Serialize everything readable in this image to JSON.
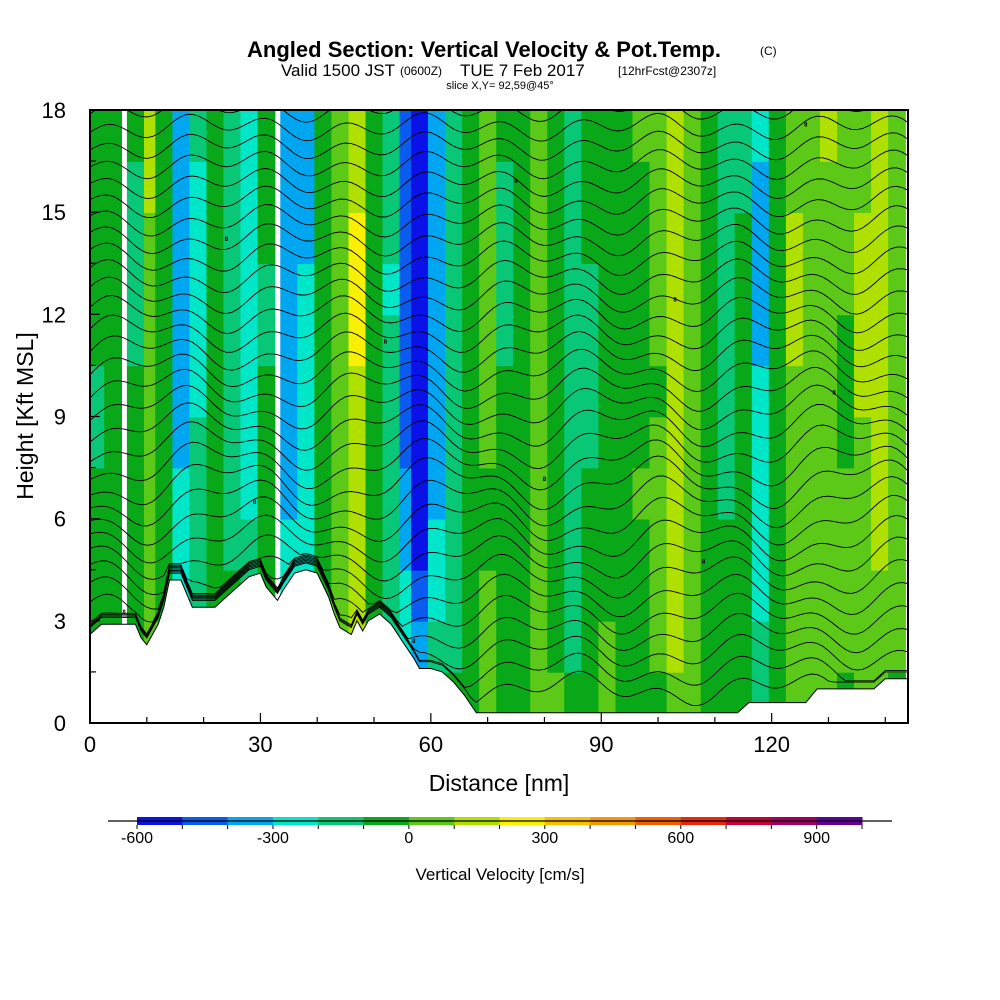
{
  "title": {
    "main": "Angled Section: Vertical Velocity & Pot.Temp.",
    "copyright": "(C)",
    "valid_prefix": "Valid 1500 JST",
    "valid_utc": "(0600Z)",
    "valid_date": "TUE 7 Feb 2017",
    "forecast": "[12hrFcst@2307z]",
    "slice": "slice X,Y= 92,59@45°"
  },
  "chart_data": {
    "type": "heatmap",
    "xlabel": "Distance [nm]",
    "ylabel": "Height [Kft MSL]",
    "xlim": [
      0,
      144
    ],
    "ylim": [
      0,
      18
    ],
    "x_ticks": [
      0,
      30,
      60,
      90,
      120
    ],
    "y_ticks": [
      0,
      3,
      6,
      9,
      12,
      15,
      18
    ],
    "colorbar": {
      "label": "Vertical Velocity [cm/s]",
      "range": [
        -600,
        1000
      ],
      "tick_values": [
        -600,
        -300,
        0,
        300,
        600,
        900
      ],
      "tick_labels": [
        "-600",
        "-300",
        "0",
        "300",
        "600",
        "900"
      ],
      "colors": [
        "#0a12e8",
        "#0a5cf0",
        "#00a6f0",
        "#00e6c8",
        "#08c878",
        "#08a818",
        "#5cc818",
        "#b0e000",
        "#f8f000",
        "#f8c000",
        "#f89800",
        "#f06000",
        "#e82808",
        "#c80038",
        "#a00060",
        "#600098"
      ]
    },
    "vertical_velocity_columns": [
      {
        "x": 1,
        "w": -70
      },
      {
        "x": 4,
        "w": -55
      },
      {
        "x": 8,
        "w": -90
      },
      {
        "x": 11,
        "w": 70
      },
      {
        "x": 13,
        "w": -30
      },
      {
        "x": 16,
        "w": -280
      },
      {
        "x": 19,
        "w": -180
      },
      {
        "x": 22,
        "w": -40
      },
      {
        "x": 25,
        "w": -120
      },
      {
        "x": 28,
        "w": -200
      },
      {
        "x": 31,
        "w": -70
      },
      {
        "x": 35,
        "w": -300
      },
      {
        "x": 38,
        "w": -250
      },
      {
        "x": 41,
        "w": -60
      },
      {
        "x": 44,
        "w": 30
      },
      {
        "x": 47,
        "w": 160
      },
      {
        "x": 50,
        "w": -40
      },
      {
        "x": 53,
        "w": -150
      },
      {
        "x": 56,
        "w": -380
      },
      {
        "x": 58,
        "w": -560
      },
      {
        "x": 61,
        "w": -300
      },
      {
        "x": 64,
        "w": -140
      },
      {
        "x": 67,
        "w": -40
      },
      {
        "x": 70,
        "w": 20
      },
      {
        "x": 73,
        "w": -90
      },
      {
        "x": 76,
        "w": -40
      },
      {
        "x": 79,
        "w": 60
      },
      {
        "x": 82,
        "w": -20
      },
      {
        "x": 85,
        "w": -120
      },
      {
        "x": 88,
        "w": -90
      },
      {
        "x": 91,
        "w": -30
      },
      {
        "x": 94,
        "w": -60
      },
      {
        "x": 97,
        "w": -20
      },
      {
        "x": 100,
        "w": 20
      },
      {
        "x": 103,
        "w": 140
      },
      {
        "x": 106,
        "w": 60
      },
      {
        "x": 109,
        "w": -30
      },
      {
        "x": 112,
        "w": -120
      },
      {
        "x": 115,
        "w": -70
      },
      {
        "x": 118,
        "w": -250
      },
      {
        "x": 121,
        "w": -50
      },
      {
        "x": 124,
        "w": 80
      },
      {
        "x": 127,
        "w": 40
      },
      {
        "x": 130,
        "w": 70
      },
      {
        "x": 133,
        "w": 10
      },
      {
        "x": 136,
        "w": 80
      },
      {
        "x": 139,
        "w": 140
      },
      {
        "x": 142,
        "w": 40
      }
    ],
    "terrain_height_kft": [
      {
        "x": 0,
        "z": 2.6
      },
      {
        "x": 2,
        "z": 2.9
      },
      {
        "x": 6,
        "z": 2.9
      },
      {
        "x": 8,
        "z": 2.9
      },
      {
        "x": 9,
        "z": 2.5
      },
      {
        "x": 10,
        "z": 2.3
      },
      {
        "x": 11,
        "z": 2.6
      },
      {
        "x": 12,
        "z": 2.9
      },
      {
        "x": 13,
        "z": 3.4
      },
      {
        "x": 14,
        "z": 4.2
      },
      {
        "x": 16,
        "z": 4.2
      },
      {
        "x": 17,
        "z": 3.8
      },
      {
        "x": 18,
        "z": 3.4
      },
      {
        "x": 20,
        "z": 3.4
      },
      {
        "x": 22,
        "z": 3.4
      },
      {
        "x": 24,
        "z": 3.7
      },
      {
        "x": 26,
        "z": 4.0
      },
      {
        "x": 28,
        "z": 4.3
      },
      {
        "x": 30,
        "z": 4.4
      },
      {
        "x": 31,
        "z": 4.0
      },
      {
        "x": 33,
        "z": 3.6
      },
      {
        "x": 34,
        "z": 3.9
      },
      {
        "x": 36,
        "z": 4.4
      },
      {
        "x": 38,
        "z": 4.5
      },
      {
        "x": 40,
        "z": 4.4
      },
      {
        "x": 42,
        "z": 3.7
      },
      {
        "x": 43,
        "z": 3.2
      },
      {
        "x": 44,
        "z": 2.8
      },
      {
        "x": 46,
        "z": 2.6
      },
      {
        "x": 47,
        "z": 3.0
      },
      {
        "x": 48,
        "z": 2.7
      },
      {
        "x": 49,
        "z": 3.0
      },
      {
        "x": 51,
        "z": 3.2
      },
      {
        "x": 53,
        "z": 2.9
      },
      {
        "x": 55,
        "z": 2.4
      },
      {
        "x": 57,
        "z": 1.9
      },
      {
        "x": 58,
        "z": 1.6
      },
      {
        "x": 60,
        "z": 1.6
      },
      {
        "x": 62,
        "z": 1.5
      },
      {
        "x": 64,
        "z": 1.2
      },
      {
        "x": 66,
        "z": 0.8
      },
      {
        "x": 68,
        "z": 0.3
      },
      {
        "x": 70,
        "z": 0.3
      },
      {
        "x": 114,
        "z": 0.3
      },
      {
        "x": 116,
        "z": 0.6
      },
      {
        "x": 118,
        "z": 0.6
      },
      {
        "x": 126,
        "z": 0.6
      },
      {
        "x": 128,
        "z": 1.0
      },
      {
        "x": 138,
        "z": 1.0
      },
      {
        "x": 140,
        "z": 1.3
      },
      {
        "x": 144,
        "z": 1.3
      }
    ],
    "contour_label": "8"
  }
}
